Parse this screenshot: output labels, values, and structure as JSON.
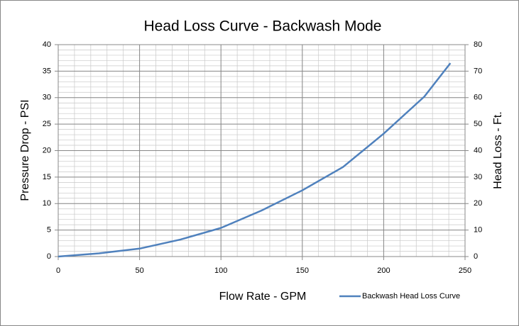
{
  "chart_data": {
    "type": "line",
    "title": "Head Loss Curve - Backwash Mode",
    "x_label": "Flow Rate - GPM",
    "y_label": "Pressure Drop - PSI",
    "y2_label": "Head Loss - Ft.",
    "x": [
      0,
      25,
      50,
      75,
      100,
      125,
      150,
      175,
      200,
      225,
      241
    ],
    "series": [
      {
        "name": "Backwash Head Loss Curve",
        "color": "#4f81bd",
        "values": [
          0,
          0.6,
          1.5,
          3.2,
          5.4,
          8.7,
          12.5,
          16.9,
          23.2,
          30.2,
          36.5
        ]
      }
    ],
    "xlim": [
      0,
      250
    ],
    "xticks": [
      0,
      50,
      100,
      150,
      200,
      250
    ],
    "ylim": [
      0,
      40
    ],
    "yticks": [
      0,
      5,
      10,
      15,
      20,
      25,
      30,
      35,
      40
    ],
    "y2lim": [
      0,
      80
    ],
    "y2ticks": [
      0,
      10,
      20,
      30,
      40,
      50,
      60,
      70,
      80
    ],
    "grid": true,
    "minor_grid": true,
    "legend": "bottom right"
  }
}
